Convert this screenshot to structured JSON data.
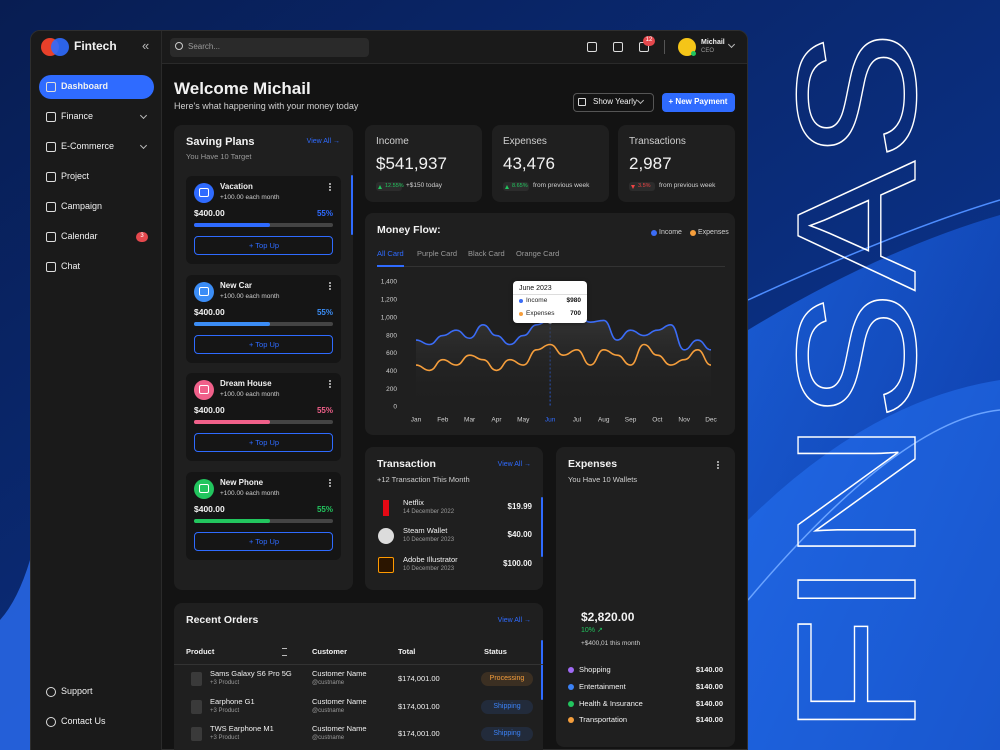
{
  "banner": "FINSAS",
  "sidebar": {
    "brand": "Fintech",
    "collapse": "«",
    "nav": [
      "Dashboard",
      "Finance",
      "E-Commerce",
      "Project",
      "Campaign",
      "Calendar",
      "Chat"
    ],
    "calendar_badge": "3",
    "footer": [
      "Support",
      "Contact Us"
    ]
  },
  "topbar": {
    "search": "Search...",
    "notifications": "12",
    "user": {
      "name": "Michail",
      "role": "CEO"
    }
  },
  "header": {
    "title": "Welcome Michail",
    "subtitle": "Here's what happening with your money today",
    "period": "Show Yearly",
    "action": "+ New Payment"
  },
  "saving_plans": {
    "title": "Saving Plans",
    "link": "View All →",
    "subtitle": "You Have 10 Target",
    "plans": [
      {
        "name": "Vacation",
        "rate": "+100.00 each month",
        "amount": "$400.00",
        "percent": {
          "value": 55,
          "label": "55%"
        },
        "color": "#2f6bff",
        "button": "+ Top Up"
      },
      {
        "name": "New Car",
        "rate": "+100.00 each month",
        "amount": "$400.00",
        "percent": {
          "value": 55,
          "label": "55%"
        },
        "color": "#3b8df6",
        "button": "+ Top Up"
      },
      {
        "name": "Dream House",
        "rate": "+100.00 each month",
        "amount": "$400.00",
        "percent": {
          "value": 55,
          "label": "55%"
        },
        "color": "#f0608a",
        "button": "+ Top Up"
      },
      {
        "name": "New Phone",
        "rate": "+100.00 each month",
        "amount": "$400.00",
        "percent": {
          "value": 55,
          "label": "55%"
        },
        "color": "#22c55e",
        "button": "+ Top Up"
      }
    ]
  },
  "stats": [
    {
      "label": "Income",
      "value": "$541,937",
      "change": "12.55%",
      "note": "+$150 today",
      "color": "#22c55e"
    },
    {
      "label": "Expenses",
      "value": "43,476",
      "change": "8.65%",
      "note": "from previous week",
      "color": "#22c55e"
    },
    {
      "label": "Transactions",
      "value": "2,987",
      "change": "3.5%",
      "note": "from previous week",
      "color": "#ef4444"
    }
  ],
  "chart_data": {
    "type": "line",
    "title": "Money Flow:",
    "tabs": [
      "All Card",
      "Purple Card",
      "Black Card",
      "Orange Card"
    ],
    "active_tab": 0,
    "categories": [
      "Jan",
      null,
      "Feb",
      null,
      "Mar",
      null,
      "Apr",
      null,
      "May",
      null,
      "Jun",
      null,
      "Jul",
      null,
      "Aug",
      null,
      "Sep",
      null,
      "Oct",
      null,
      "Nov",
      null,
      "Dec"
    ],
    "series": [
      {
        "name": "Income",
        "color": "#3b6cf6",
        "values": [
          750,
          700,
          800,
          860,
          770,
          920,
          800,
          700,
          800,
          920,
          980,
          970,
          1030,
          950,
          970,
          750,
          860,
          800,
          860,
          920,
          640,
          750,
          640
        ]
      },
      {
        "name": "Expenses",
        "color": "#f59e3c",
        "values": [
          470,
          410,
          530,
          470,
          580,
          530,
          410,
          530,
          470,
          640,
          700,
          580,
          640,
          470,
          640,
          580,
          470,
          700,
          580,
          470,
          530,
          640,
          470
        ]
      }
    ],
    "ylim": [
      0,
      1400
    ],
    "yticks": [
      0,
      200,
      400,
      600,
      800,
      {
        "value": 1000,
        "label": "1,000"
      },
      {
        "value": 1200,
        "label": "1,200"
      },
      {
        "value": 1400,
        "label": "1,400"
      }
    ],
    "highlight_index": 10,
    "tooltip": {
      "title": "June 2023",
      "rows": [
        {
          "name": "Income",
          "value": "$980"
        },
        {
          "name": "Expenses",
          "value": "700"
        }
      ]
    }
  },
  "transactions": {
    "title": "Transaction",
    "link": "View All →",
    "subtitle": "+12 Transaction This Month",
    "items": [
      {
        "name": "Netflix",
        "date": "14 December 2022",
        "amount": "$19.99"
      },
      {
        "name": "Steam Wallet",
        "date": "10 December 2023",
        "amount": "$40.00"
      },
      {
        "name": "Adobe Illustrator",
        "date": "10 December 2023",
        "amount": "$100.00"
      }
    ]
  },
  "expenses": {
    "title": "Expenses",
    "subtitle": "You Have 10 Wallets",
    "total": "$2,820.00",
    "change": "10% ↗",
    "change_note": "+$400,01 this month",
    "categories": [
      {
        "name": "Shopping",
        "amount": "$140.00",
        "color": "#a06af5"
      },
      {
        "name": "Entertainment",
        "amount": "$140.00",
        "color": "#3b82f6"
      },
      {
        "name": "Health & Insurance",
        "amount": "$140.00",
        "color": "#22c55e"
      },
      {
        "name": "Transportation",
        "amount": "$140.00",
        "color": "#f59e3c"
      }
    ]
  },
  "orders": {
    "title": "Recent Orders",
    "link": "View All →",
    "columns": [
      "Product",
      "Customer",
      "Total",
      "Status"
    ],
    "rows": [
      {
        "product": "Sams Galaxy S6 Pro 5G",
        "extra": "+3 Product",
        "customer": "Customer Name",
        "handle": "@custname",
        "total": "$174,001.00",
        "status": "Processing",
        "status_color": "#f59e3c"
      },
      {
        "product": "Earphone G1",
        "extra": "+3 Product",
        "customer": "Customer Name",
        "handle": "@custname",
        "total": "$174,001.00",
        "status": "Shipping",
        "status_color": "#3b82f6"
      },
      {
        "product": "TWS Earphone M1",
        "extra": "+3 Product",
        "customer": "Customer Name",
        "handle": "@custname",
        "total": "$174,001.00",
        "status": "Shipping",
        "status_color": "#3b82f6"
      }
    ]
  }
}
